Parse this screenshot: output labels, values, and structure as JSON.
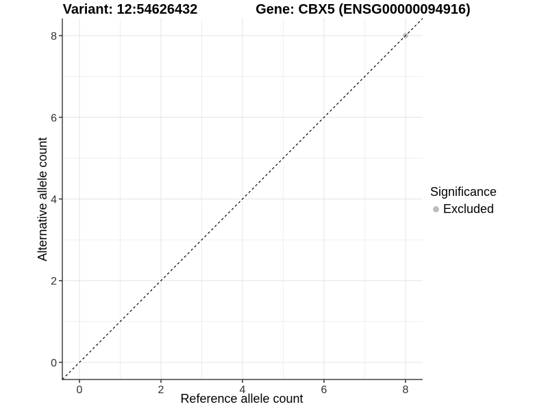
{
  "chart_data": {
    "type": "scatter",
    "titles": {
      "left": "Variant: 12:54626432",
      "right": "Gene: CBX5 (ENSG00000094916)"
    },
    "xlabel": "Reference allele count",
    "ylabel": "Alternative allele count",
    "xlim": [
      -0.42,
      8.42
    ],
    "ylim": [
      -0.42,
      8.42
    ],
    "x_ticks": [
      0,
      2,
      4,
      6,
      8
    ],
    "y_ticks": [
      0,
      2,
      4,
      6,
      8
    ],
    "minor_gridlines": [
      1,
      3,
      5,
      7
    ],
    "grid": true,
    "identity_line": {
      "slope": 1,
      "intercept": 0,
      "style": "dashed",
      "color": "#000000"
    },
    "points": [
      {
        "x": 8,
        "y": 8,
        "significance": "Excluded"
      }
    ],
    "legend": {
      "title": "Significance",
      "position": "right",
      "entries": [
        {
          "label": "Excluded",
          "color": "#bdbdbd"
        }
      ]
    },
    "colors": {
      "point": "#c2c2c2",
      "grid_major": "#e3e3e3",
      "grid_minor": "#efefef",
      "axis_line": "#404040",
      "tick": "#333333",
      "tick_label": "#303030",
      "background": "#ffffff"
    }
  }
}
